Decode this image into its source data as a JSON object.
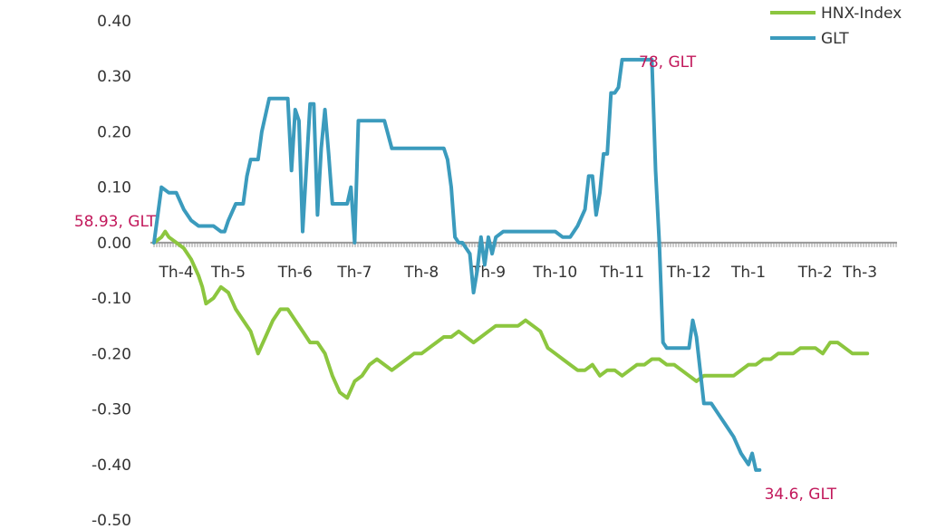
{
  "chart_data": {
    "type": "line",
    "title": "",
    "xlabel": "",
    "ylabel": "",
    "ylim": [
      -0.5,
      0.4
    ],
    "yticks": [
      0.4,
      0.3,
      0.2,
      0.1,
      0.0,
      -0.1,
      -0.2,
      -0.3,
      -0.4,
      -0.5
    ],
    "ytick_labels": [
      "0.40",
      "0.30",
      "0.20",
      "0.10",
      "0.00",
      "-0.10",
      "-0.20",
      "-0.30",
      "-0.40",
      "-0.50"
    ],
    "xlim": [
      0,
      100
    ],
    "x_categories": [
      {
        "label": "Th-4",
        "x": 3
      },
      {
        "label": "Th-5",
        "x": 10
      },
      {
        "label": "Th-6",
        "x": 19
      },
      {
        "label": "Th-7",
        "x": 27
      },
      {
        "label": "Th-8",
        "x": 36
      },
      {
        "label": "Th-9",
        "x": 45
      },
      {
        "label": "Th-10",
        "x": 54
      },
      {
        "label": "Th-11",
        "x": 63
      },
      {
        "label": "Th-12",
        "x": 72
      },
      {
        "label": "Th-1",
        "x": 80
      },
      {
        "label": "Th-2",
        "x": 89
      },
      {
        "label": "Th-3",
        "x": 95
      }
    ],
    "grid": false,
    "legend_position": "top-right",
    "colors": {
      "HNX-Index": "#8cc63f",
      "GLT": "#3b9bbd",
      "axis": "#999999",
      "annotation": "#c2185b"
    },
    "series": [
      {
        "name": "HNX-Index",
        "points": [
          [
            0,
            0.0
          ],
          [
            1,
            0.01
          ],
          [
            1.5,
            0.02
          ],
          [
            2,
            0.01
          ],
          [
            3,
            0.0
          ],
          [
            4,
            -0.01
          ],
          [
            5,
            -0.03
          ],
          [
            6,
            -0.06
          ],
          [
            6.5,
            -0.08
          ],
          [
            7,
            -0.11
          ],
          [
            8,
            -0.1
          ],
          [
            9,
            -0.08
          ],
          [
            10,
            -0.09
          ],
          [
            11,
            -0.12
          ],
          [
            12,
            -0.14
          ],
          [
            13,
            -0.16
          ],
          [
            14,
            -0.2
          ],
          [
            15,
            -0.17
          ],
          [
            16,
            -0.14
          ],
          [
            17,
            -0.12
          ],
          [
            18,
            -0.12
          ],
          [
            19,
            -0.14
          ],
          [
            20,
            -0.16
          ],
          [
            21,
            -0.18
          ],
          [
            22,
            -0.18
          ],
          [
            23,
            -0.2
          ],
          [
            24,
            -0.24
          ],
          [
            25,
            -0.27
          ],
          [
            26,
            -0.28
          ],
          [
            27,
            -0.25
          ],
          [
            28,
            -0.24
          ],
          [
            29,
            -0.22
          ],
          [
            30,
            -0.21
          ],
          [
            31,
            -0.22
          ],
          [
            32,
            -0.23
          ],
          [
            33,
            -0.22
          ],
          [
            34,
            -0.21
          ],
          [
            35,
            -0.2
          ],
          [
            36,
            -0.2
          ],
          [
            37,
            -0.19
          ],
          [
            38,
            -0.18
          ],
          [
            39,
            -0.17
          ],
          [
            40,
            -0.17
          ],
          [
            41,
            -0.16
          ],
          [
            42,
            -0.17
          ],
          [
            43,
            -0.18
          ],
          [
            44,
            -0.17
          ],
          [
            45,
            -0.16
          ],
          [
            46,
            -0.15
          ],
          [
            47,
            -0.15
          ],
          [
            48,
            -0.15
          ],
          [
            49,
            -0.15
          ],
          [
            50,
            -0.14
          ],
          [
            51,
            -0.15
          ],
          [
            52,
            -0.16
          ],
          [
            53,
            -0.19
          ],
          [
            54,
            -0.2
          ],
          [
            55,
            -0.21
          ],
          [
            56,
            -0.22
          ],
          [
            57,
            -0.23
          ],
          [
            58,
            -0.23
          ],
          [
            59,
            -0.22
          ],
          [
            60,
            -0.24
          ],
          [
            61,
            -0.23
          ],
          [
            62,
            -0.23
          ],
          [
            63,
            -0.24
          ],
          [
            64,
            -0.23
          ],
          [
            65,
            -0.22
          ],
          [
            66,
            -0.22
          ],
          [
            67,
            -0.21
          ],
          [
            68,
            -0.21
          ],
          [
            69,
            -0.22
          ],
          [
            70,
            -0.22
          ],
          [
            71,
            -0.23
          ],
          [
            72,
            -0.24
          ],
          [
            73,
            -0.25
          ],
          [
            74,
            -0.24
          ],
          [
            75,
            -0.24
          ],
          [
            76,
            -0.24
          ],
          [
            77,
            -0.24
          ],
          [
            78,
            -0.24
          ],
          [
            79,
            -0.23
          ],
          [
            80,
            -0.22
          ],
          [
            81,
            -0.22
          ],
          [
            82,
            -0.21
          ],
          [
            83,
            -0.21
          ],
          [
            84,
            -0.2
          ],
          [
            85,
            -0.2
          ],
          [
            86,
            -0.2
          ],
          [
            87,
            -0.19
          ],
          [
            88,
            -0.19
          ],
          [
            89,
            -0.19
          ],
          [
            90,
            -0.2
          ],
          [
            91,
            -0.18
          ],
          [
            92,
            -0.18
          ],
          [
            93,
            -0.19
          ],
          [
            94,
            -0.2
          ],
          [
            95,
            -0.2
          ],
          [
            96,
            -0.2
          ]
        ]
      },
      {
        "name": "GLT",
        "points": [
          [
            0,
            0.0
          ],
          [
            1,
            0.1
          ],
          [
            2,
            0.09
          ],
          [
            3,
            0.09
          ],
          [
            4,
            0.06
          ],
          [
            5,
            0.04
          ],
          [
            6,
            0.03
          ],
          [
            7,
            0.03
          ],
          [
            8,
            0.03
          ],
          [
            9,
            0.02
          ],
          [
            9.5,
            0.02
          ],
          [
            10,
            0.04
          ],
          [
            11,
            0.07
          ],
          [
            12,
            0.07
          ],
          [
            12.5,
            0.12
          ],
          [
            13,
            0.15
          ],
          [
            14,
            0.15
          ],
          [
            14.5,
            0.2
          ],
          [
            15,
            0.23
          ],
          [
            15.5,
            0.26
          ],
          [
            16,
            0.26
          ],
          [
            17,
            0.26
          ],
          [
            18,
            0.26
          ],
          [
            18.5,
            0.13
          ],
          [
            19,
            0.24
          ],
          [
            19.5,
            0.22
          ],
          [
            20,
            0.02
          ],
          [
            21,
            0.25
          ],
          [
            21.5,
            0.25
          ],
          [
            22,
            0.05
          ],
          [
            22.5,
            0.17
          ],
          [
            23,
            0.24
          ],
          [
            23.5,
            0.16
          ],
          [
            24,
            0.07
          ],
          [
            25,
            0.07
          ],
          [
            26,
            0.07
          ],
          [
            26.5,
            0.1
          ],
          [
            27,
            0.0
          ],
          [
            27.5,
            0.22
          ],
          [
            28,
            0.22
          ],
          [
            30,
            0.22
          ],
          [
            31,
            0.22
          ],
          [
            32,
            0.17
          ],
          [
            34,
            0.17
          ],
          [
            36,
            0.17
          ],
          [
            37,
            0.17
          ],
          [
            38,
            0.17
          ],
          [
            39,
            0.17
          ],
          [
            39.5,
            0.15
          ],
          [
            40,
            0.1
          ],
          [
            40.5,
            0.01
          ],
          [
            41,
            0.0
          ],
          [
            41.5,
            0.0
          ],
          [
            42,
            -0.01
          ],
          [
            42.5,
            -0.02
          ],
          [
            43,
            -0.09
          ],
          [
            43.5,
            -0.05
          ],
          [
            44,
            0.01
          ],
          [
            44.5,
            -0.04
          ],
          [
            45,
            0.01
          ],
          [
            45.5,
            -0.02
          ],
          [
            46,
            0.01
          ],
          [
            47,
            0.02
          ],
          [
            48,
            0.02
          ],
          [
            50,
            0.02
          ],
          [
            52,
            0.02
          ],
          [
            54,
            0.02
          ],
          [
            55,
            0.01
          ],
          [
            56,
            0.01
          ],
          [
            57,
            0.03
          ],
          [
            58,
            0.06
          ],
          [
            58.5,
            0.12
          ],
          [
            59,
            0.12
          ],
          [
            59.5,
            0.05
          ],
          [
            60,
            0.09
          ],
          [
            60.5,
            0.16
          ],
          [
            61,
            0.16
          ],
          [
            61.5,
            0.27
          ],
          [
            62,
            0.27
          ],
          [
            62.5,
            0.28
          ],
          [
            63,
            0.33
          ],
          [
            64,
            0.33
          ],
          [
            66,
            0.33
          ],
          [
            67,
            0.33
          ],
          [
            67.5,
            0.13
          ],
          [
            68,
            0.0
          ],
          [
            68.5,
            -0.18
          ],
          [
            69,
            -0.19
          ],
          [
            70,
            -0.19
          ],
          [
            71,
            -0.19
          ],
          [
            72,
            -0.19
          ],
          [
            72.5,
            -0.14
          ],
          [
            73,
            -0.17
          ],
          [
            73.5,
            -0.23
          ],
          [
            74,
            -0.29
          ],
          [
            75,
            -0.29
          ],
          [
            76,
            -0.31
          ],
          [
            77,
            -0.33
          ],
          [
            78,
            -0.35
          ],
          [
            79,
            -0.38
          ],
          [
            80,
            -0.4
          ],
          [
            80.5,
            -0.38
          ],
          [
            81,
            -0.41
          ],
          [
            81.5,
            -0.41
          ]
        ]
      }
    ],
    "annotations": [
      {
        "text": "58.93, GLT",
        "anchor": "left-of-start"
      },
      {
        "text": "78, GLT",
        "anchor": "above-peak"
      },
      {
        "text": "34.6, GLT",
        "anchor": "below-end"
      }
    ]
  }
}
